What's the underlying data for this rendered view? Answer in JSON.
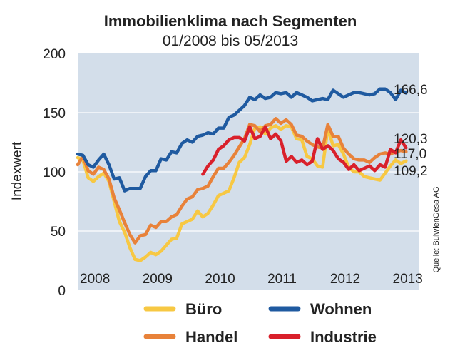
{
  "chart_data": {
    "type": "line",
    "title": "Immobilienklima nach Segmenten",
    "subtitle": "01/2008 bis 05/2013",
    "ylabel": "Indexwert",
    "source": "Quelle: BulwienGesa AG",
    "ylim": [
      0,
      200
    ],
    "yticks": [
      0,
      50,
      100,
      150,
      200
    ],
    "xlim": [
      2008.0,
      2013.45
    ],
    "year_labels": [
      {
        "x": 2008.0,
        "label": "2008"
      },
      {
        "x": 2009.0,
        "label": "2009"
      },
      {
        "x": 2010.0,
        "label": "2010"
      },
      {
        "x": 2011.0,
        "label": "2011"
      },
      {
        "x": 2012.0,
        "label": "2012"
      },
      {
        "x": 2013.0,
        "label": "2013"
      }
    ],
    "grid": true,
    "legend": "bottom",
    "end_labels": [
      {
        "series": "Wohnen",
        "value": "166,6"
      },
      {
        "series": "Industrie",
        "value": "120,3"
      },
      {
        "series": "Handel",
        "value": "117,0"
      },
      {
        "series": "Büro",
        "value": "109,2"
      }
    ],
    "series": [
      {
        "name": "Büro",
        "color": "#f7c843",
        "start": 2008.0,
        "step": 0.0833,
        "values": [
          112,
          110,
          95,
          92,
          96,
          99,
          92,
          75,
          58,
          49,
          36,
          26,
          25,
          28,
          32,
          30,
          33,
          38,
          43,
          44,
          56,
          58,
          60,
          67,
          62,
          65,
          72,
          80,
          82,
          84,
          95,
          108,
          112,
          123,
          137,
          138,
          132,
          137,
          139,
          136,
          139,
          138,
          128,
          127,
          113,
          111,
          105,
          104,
          137,
          122,
          123,
          115,
          104,
          100,
          100,
          96,
          95,
          94,
          93,
          99,
          105,
          110,
          107,
          109.2
        ]
      },
      {
        "name": "Handel",
        "color": "#e8823a",
        "start": 2008.0,
        "step": 0.0833,
        "values": [
          106,
          113,
          101,
          98,
          104,
          102,
          94,
          78,
          68,
          57,
          47,
          40,
          46,
          47,
          55,
          53,
          58,
          58,
          62,
          64,
          71,
          77,
          79,
          85,
          86,
          88,
          96,
          103,
          103,
          108,
          114,
          121,
          128,
          140,
          139,
          134,
          139,
          140,
          145,
          141,
          144,
          140,
          131,
          130,
          126,
          123,
          121,
          120,
          140,
          130,
          130,
          120,
          115,
          111,
          110,
          110,
          108,
          112,
          115,
          116,
          115,
          117,
          118,
          117.0
        ]
      },
      {
        "name": "Wohnen",
        "color": "#1f5aa0",
        "start": 2008.0,
        "step": 0.0833,
        "values": [
          115,
          114,
          106,
          104,
          110,
          115,
          106,
          94,
          95,
          84,
          86,
          86,
          86,
          96,
          101,
          101,
          111,
          110,
          117,
          116,
          124,
          127,
          125,
          130,
          131,
          133,
          132,
          137,
          137,
          146,
          148,
          152,
          156,
          163,
          161,
          165,
          162,
          163,
          167,
          166,
          167,
          163,
          167,
          165,
          163,
          160,
          161,
          162,
          161,
          169,
          166,
          163,
          165,
          167,
          167,
          166,
          165,
          166,
          170,
          170,
          167,
          161,
          169,
          166.6
        ]
      },
      {
        "name": "Industrie",
        "color": "#d9202b",
        "start": 2010.0,
        "step": 0.0833,
        "values": [
          98,
          105,
          110,
          119,
          122,
          127,
          129,
          129,
          126,
          138,
          128,
          130,
          138,
          128,
          132,
          126,
          109,
          113,
          108,
          110,
          106,
          109,
          128,
          119,
          122,
          118,
          111,
          108,
          102,
          106,
          101,
          103,
          105,
          101,
          106,
          104,
          119,
          116,
          127,
          120.3
        ]
      }
    ]
  }
}
